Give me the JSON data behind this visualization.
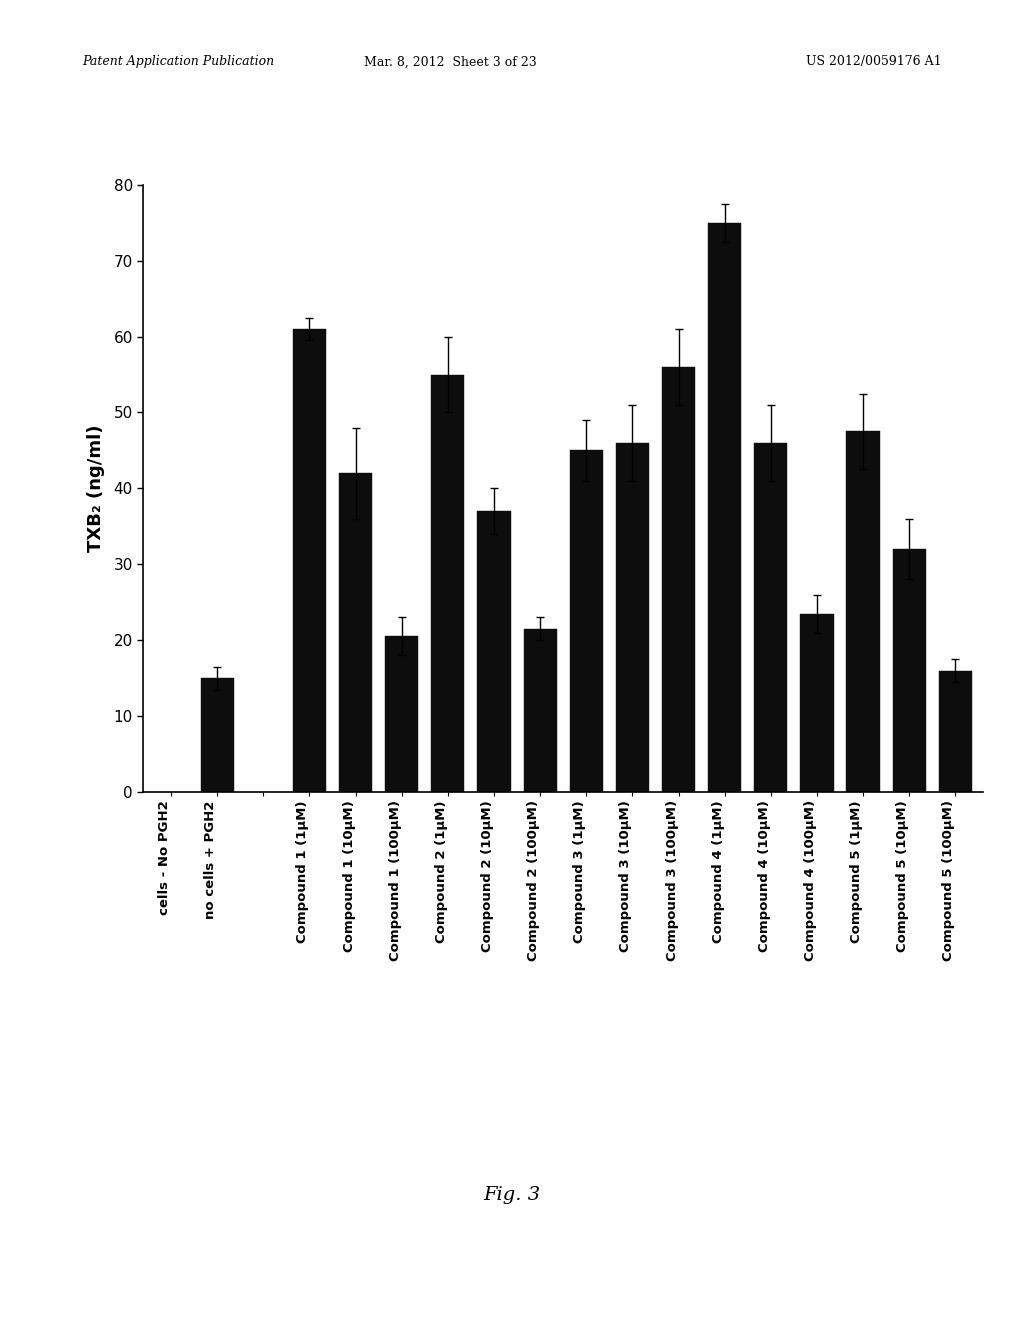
{
  "categories": [
    "cells - No PGH2",
    "no cells + PGH2",
    "",
    "Compound 1 (1μM)",
    "Compound 1 (10μM)",
    "Compound 1 (100μM)",
    "Compound 2 (1μM)",
    "Compound 2 (10μM)",
    "Compound 2 (100μM)",
    "Compound 3 (1μM)",
    "Compound 3 (10μM)",
    "Compound 3 (100μM)",
    "Compound 4 (1μM)",
    "Compound 4 (10μM)",
    "Compound 4 (100μM)",
    "Compound 5 (1μM)",
    "Compound 5 (10μM)",
    "Compound 5 (100μM)"
  ],
  "values": [
    0,
    15,
    null,
    61,
    42,
    20.5,
    55,
    37,
    21.5,
    45,
    46,
    56,
    75,
    46,
    23.5,
    47.5,
    32,
    16
  ],
  "errors": [
    0,
    1.5,
    null,
    1.5,
    6,
    2.5,
    5,
    3,
    1.5,
    4,
    5,
    5,
    2.5,
    5,
    2.5,
    5,
    4,
    1.5
  ],
  "bar_color": "#0d0d0d",
  "ylabel": "TXB₂ (ng/ml)",
  "ylim": [
    0,
    80
  ],
  "yticks": [
    0,
    10,
    20,
    30,
    40,
    50,
    60,
    70,
    80
  ],
  "fig_caption": "Fig. 3",
  "header_left": "Patent Application Publication",
  "header_center": "Mar. 8, 2012  Sheet 3 of 23",
  "header_right": "US 2012/0059176 A1",
  "background_color": "#ffffff"
}
